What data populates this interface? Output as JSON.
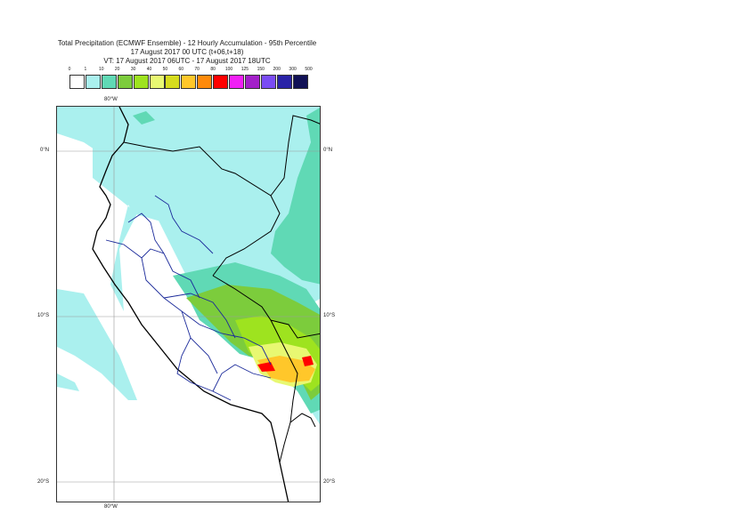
{
  "title": {
    "line1": "Total Precipitation (ECMWF Ensemble) - 12 Hourly Accumulation - 95th Percentile",
    "line2": "17 August 2017 00 UTC (t+06,t+18)",
    "line3": "VT: 17 August 2017 06UTC - 17 August 2017 18UTC"
  },
  "legend": {
    "ticks": [
      "0",
      "1",
      "10",
      "20",
      "30",
      "40",
      "50",
      "60",
      "70",
      "80",
      "100",
      "125",
      "150",
      "200",
      "300",
      "500"
    ],
    "colors": [
      "#ffffff",
      "#aaf0ee",
      "#60d9b5",
      "#7ccc3c",
      "#9ee31f",
      "#e8f872",
      "#d6dc1d",
      "#ffc72a",
      "#ff8a0b",
      "#ff0000",
      "#f11ff5",
      "#a320c9",
      "#7a4cf4",
      "#2a23a7",
      "#111155"
    ]
  },
  "coords": {
    "lon_top": "80°W",
    "lon_bottom": "80°W",
    "lat_0_left": "0°N",
    "lat_0_right": "0°N",
    "lat_10_left": "10°S",
    "lat_10_right": "10°S",
    "lat_20_left": "20°S",
    "lat_20_right": "20°S"
  }
}
